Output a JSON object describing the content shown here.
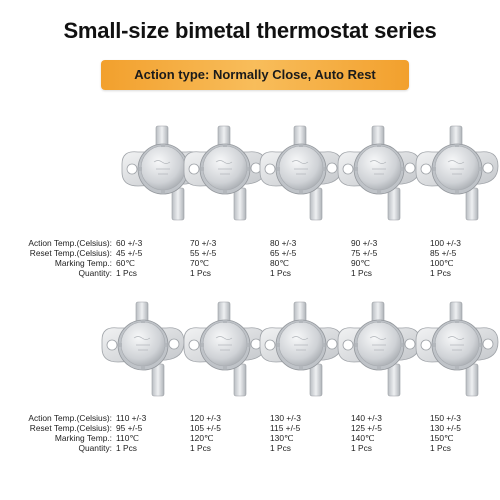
{
  "title": "Small-size bimetal thermostat series",
  "banner": "Action type: Normally Close, Auto Rest",
  "labels": {
    "action": "Action Temp.(Celsius):",
    "reset": "Reset  Temp.(Celsius):",
    "marking": "Marking Temp.:",
    "quantity": "Quantity:"
  },
  "rows": [
    {
      "items": [
        {
          "action": "60 +/-3",
          "reset": "45 +/-5",
          "marking": "60℃",
          "qty": "1 Pcs"
        },
        {
          "action": "70 +/-3",
          "reset": "55 +/-5",
          "marking": "70℃",
          "qty": "1 Pcs"
        },
        {
          "action": "80 +/-3",
          "reset": "65 +/-5",
          "marking": "80℃",
          "qty": "1 Pcs"
        },
        {
          "action": "90 +/-3",
          "reset": "75 +/-5",
          "marking": "90℃",
          "qty": "1 Pcs"
        },
        {
          "action": "100 +/-3",
          "reset": "85 +/-5",
          "marking": "100℃",
          "qty": "1 Pcs"
        }
      ]
    },
    {
      "items": [
        {
          "action": "110 +/-3",
          "reset": "95 +/-5",
          "marking": "110℃",
          "qty": "1 Pcs"
        },
        {
          "action": "120 +/-3",
          "reset": "105 +/-5",
          "marking": "120℃",
          "qty": "1 Pcs"
        },
        {
          "action": "130 +/-3",
          "reset": "115 +/-5",
          "marking": "130℃",
          "qty": "1 Pcs"
        },
        {
          "action": "140 +/-3",
          "reset": "125 +/-5",
          "marking": "140℃",
          "qty": "1 Pcs"
        },
        {
          "action": "150 +/-3",
          "reset": "130 +/-5",
          "marking": "150℃",
          "qty": "1 Pcs"
        }
      ]
    }
  ],
  "colors": {
    "banner": "#f5a83a",
    "metal": "#d9dce0",
    "cap": "#c9ccd0"
  }
}
